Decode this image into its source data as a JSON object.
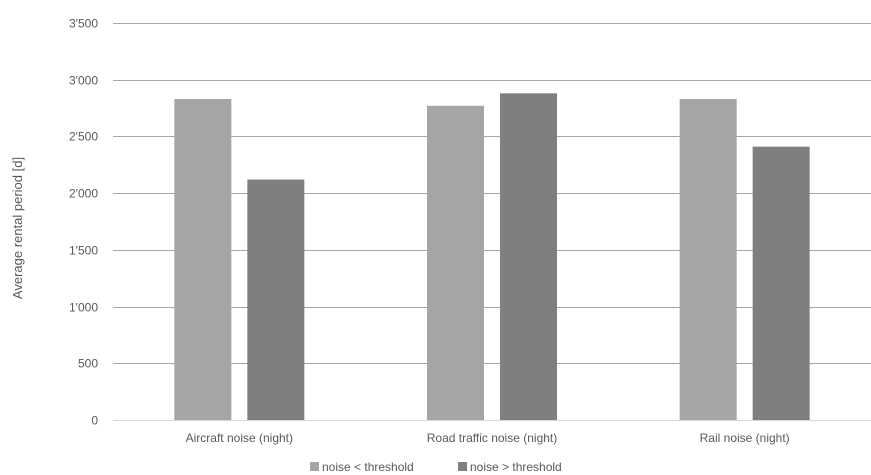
{
  "chart_data": {
    "type": "bar",
    "title": "",
    "xlabel": "",
    "ylabel": "Average rental period [d]",
    "ylim": [
      0,
      3500
    ],
    "yticks": [
      0,
      500,
      1000,
      1500,
      2000,
      2500,
      3000,
      3500
    ],
    "ytick_labels": [
      "0",
      "500",
      "1'000",
      "1'500",
      "2'000",
      "2'500",
      "3'000",
      "3'500"
    ],
    "grid": true,
    "legend_position": "bottom",
    "categories": [
      "Aircraft noise (night)",
      "Road traffic noise (night)",
      "Rail noise (night)"
    ],
    "series": [
      {
        "name": "noise < threshold",
        "color": "#a5a5a5",
        "values": [
          2830,
          2770,
          2830
        ]
      },
      {
        "name": "noise > threshold",
        "color": "#7f7f7f",
        "values": [
          2120,
          2880,
          2410
        ]
      }
    ]
  }
}
